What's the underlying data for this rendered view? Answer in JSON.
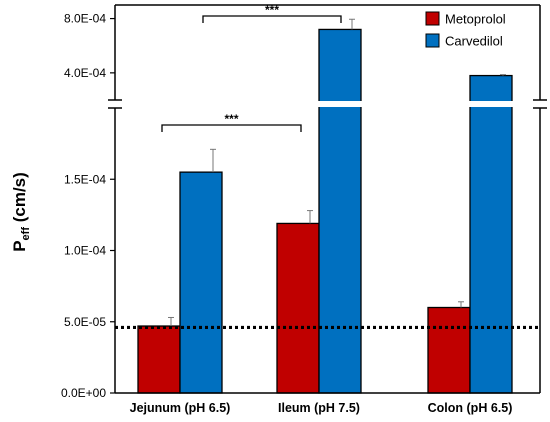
{
  "chart_data": {
    "type": "bar",
    "ylabel": {
      "main": "P",
      "subscript": "eff",
      "unit": " (cm/s)"
    },
    "categories": [
      "Jejunum (pH 6.5)",
      "Ileum (pH 7.5)",
      "Colon (pH 6.5)"
    ],
    "series": [
      {
        "name": "Metoprolol",
        "color": "#c00000",
        "values": [
          4.7e-05,
          0.000119,
          6e-05
        ],
        "errors": [
          6e-06,
          9e-06,
          4e-06
        ]
      },
      {
        "name": "Carvedilol",
        "color": "#0070c0",
        "values": [
          0.000155,
          0.00072,
          0.00038
        ],
        "errors": [
          1.6e-05,
          7.5e-05,
          7e-06
        ]
      }
    ],
    "axis_break": true,
    "lower_segment": {
      "ylim": [
        0,
        0.0002
      ],
      "ticks": [
        "0.0E+00",
        "5.0E-05",
        "1.0E-04",
        "1.5E-04"
      ],
      "tick_values": [
        0,
        5e-05,
        0.0001,
        0.00015
      ]
    },
    "upper_segment": {
      "ylim": [
        0.0002,
        0.0009
      ],
      "ticks": [
        "4.0E-04",
        "8.0E-04"
      ],
      "tick_values": [
        0.0004,
        0.0008
      ]
    },
    "reference_line": {
      "value": 4.6e-05,
      "style": "dotted"
    },
    "significance": [
      {
        "label": "***",
        "from_category": 0,
        "to_category": 1,
        "series": "Carvedilol"
      },
      {
        "label": "***",
        "from_category": 0,
        "to_category": 1,
        "series": "Metoprolol"
      }
    ],
    "legend": {
      "position": "top-right"
    },
    "grid": false
  }
}
